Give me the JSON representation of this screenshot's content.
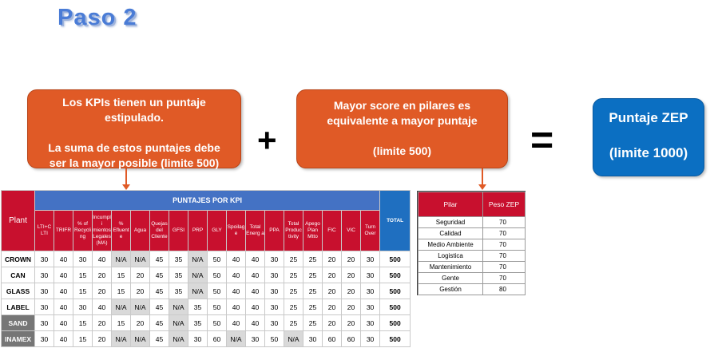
{
  "title": "Paso 2",
  "callout_kpi": {
    "line1": "Los KPIs tienen un puntaje",
    "line2": "estipulado.",
    "line3": "La suma de estos puntajes debe",
    "line4": "ser la mayor  posible (limite 500)"
  },
  "operator_plus": "+",
  "callout_pilares": {
    "line1": "Mayor score en pilares es",
    "line2": "equivalente a mayor puntaje",
    "line3": "(limite  500)"
  },
  "operator_equals": "=",
  "result_box": {
    "line1": "Puntaje ZEP",
    "line2": "(limite  1000)"
  },
  "kpi_table": {
    "plant_header": "Plant",
    "group_header": "PUNTAJES POR KPI",
    "total_header": "TOTAL",
    "columns": [
      "LTI+C LTI",
      "TRIFR",
      "% of Recycling",
      "Incumpli mientos Legales (MA)",
      "% Efluent e",
      "Agua",
      "Quejas del Cliente",
      "GFSI",
      "PRP",
      "GLY",
      "Spoilag e",
      "Total Energ a",
      "PPA",
      "Total Produc tivity",
      "Apego Plan Mtto",
      "FIC",
      "VIC",
      "Turn Over"
    ],
    "rows": [
      {
        "plant": "CROWN",
        "values": [
          "30",
          "40",
          "30",
          "40",
          "N/A",
          "N/A",
          "45",
          "35",
          "N/A",
          "50",
          "40",
          "40",
          "30",
          "25",
          "25",
          "20",
          "20",
          "30"
        ],
        "total": "500"
      },
      {
        "plant": "CAN",
        "values": [
          "30",
          "40",
          "15",
          "20",
          "15",
          "20",
          "45",
          "35",
          "N/A",
          "50",
          "40",
          "40",
          "30",
          "25",
          "25",
          "20",
          "20",
          "30"
        ],
        "total": "500"
      },
      {
        "plant": "GLASS",
        "values": [
          "30",
          "40",
          "15",
          "20",
          "15",
          "20",
          "45",
          "35",
          "N/A",
          "50",
          "40",
          "40",
          "30",
          "25",
          "25",
          "20",
          "20",
          "30"
        ],
        "total": "500"
      },
      {
        "plant": "LABEL",
        "values": [
          "30",
          "40",
          "30",
          "40",
          "N/A",
          "N/A",
          "45",
          "N/A",
          "35",
          "50",
          "40",
          "40",
          "30",
          "25",
          "25",
          "20",
          "20",
          "30"
        ],
        "total": "500"
      },
      {
        "plant": "SAND",
        "values": [
          "30",
          "40",
          "15",
          "20",
          "15",
          "20",
          "45",
          "N/A",
          "35",
          "50",
          "40",
          "40",
          "30",
          "25",
          "25",
          "20",
          "20",
          "30"
        ],
        "total": "500"
      },
      {
        "plant": "INAMEX",
        "values": [
          "30",
          "40",
          "15",
          "20",
          "N/A",
          "N/A",
          "45",
          "N/A",
          "30",
          "60",
          "N/A",
          "30",
          "50",
          "N/A",
          "30",
          "60",
          "60",
          "30"
        ],
        "total": "500"
      }
    ]
  },
  "pilar_table": {
    "headers": [
      "Pilar",
      "Peso ZEP"
    ],
    "rows": [
      {
        "pilar": "Seguridad",
        "peso": "70"
      },
      {
        "pilar": "Calidad",
        "peso": "70"
      },
      {
        "pilar": "Medio  Ambiente",
        "peso": "70"
      },
      {
        "pilar": "Logistica",
        "peso": "70"
      },
      {
        "pilar": "Mantenimiento",
        "peso": "70"
      },
      {
        "pilar": "Gente",
        "peso": "70"
      },
      {
        "pilar": "Gestión",
        "peso": "80"
      }
    ]
  },
  "colors": {
    "title_blue": "#4a7cd6",
    "callout_orange": "#e05a26",
    "result_blue": "#0b6fc2",
    "header_red": "#c8102e",
    "header_blue": "#4472c4",
    "na_gray": "#d9d9d9"
  }
}
